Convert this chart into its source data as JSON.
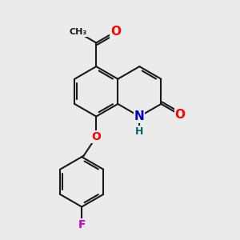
{
  "bg_color": "#ebebeb",
  "bond_color": "#1a1a1a",
  "bond_width": 1.5,
  "atom_colors": {
    "O": "#ff0000",
    "N": "#0000cc",
    "F": "#cc00cc",
    "H": "#006666",
    "C": "#1a1a1a"
  },
  "font_size": 10
}
